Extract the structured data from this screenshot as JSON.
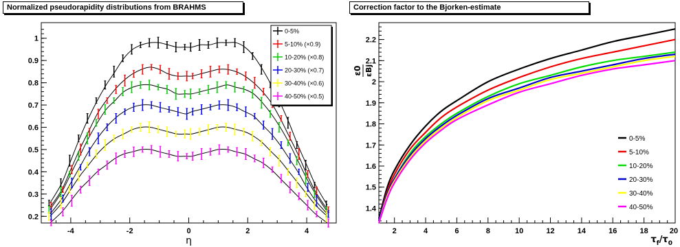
{
  "chart_data": [
    {
      "type": "scatter",
      "title": "Normalized pseudorapidity distributions from BRAHMS",
      "xlabel": "η",
      "ylabel": "",
      "xlim": [
        -5,
        5
      ],
      "ylim": [
        0.17,
        1.07
      ],
      "xticks": [
        -4,
        -2,
        0,
        2,
        4
      ],
      "xtick_labels": [
        "-4",
        "-2",
        "0",
        "2",
        "4"
      ],
      "yticks": [
        0.2,
        0.3,
        0.4,
        0.5,
        0.6,
        0.7,
        0.8,
        0.9,
        1.0
      ],
      "ytick_labels": [
        "0.2",
        "0.3",
        "0.4",
        "0.5",
        "0.6",
        "0.7",
        "0.8",
        "0.9",
        "1"
      ],
      "legend_position": "top-right",
      "fit_curves": "black solid lines through each series",
      "x": [
        -4.7,
        -4.3,
        -4.0,
        -3.7,
        -3.4,
        -3.1,
        -2.8,
        -2.5,
        -2.2,
        -1.9,
        -1.6,
        -1.3,
        -1.0,
        -0.7,
        -0.4,
        -0.1,
        0.1,
        0.4,
        0.7,
        1.0,
        1.3,
        1.6,
        1.9,
        2.2,
        2.5,
        2.8,
        3.1,
        3.4,
        3.7,
        4.0,
        4.3,
        4.7
      ],
      "series": [
        {
          "name": "0-5%",
          "color": "#000000",
          "values": [
            0.26,
            0.35,
            0.45,
            0.55,
            0.64,
            0.72,
            0.79,
            0.85,
            0.91,
            0.95,
            0.97,
            0.98,
            0.98,
            0.97,
            0.96,
            0.96,
            0.96,
            0.97,
            0.97,
            0.98,
            0.98,
            0.98,
            0.96,
            0.92,
            0.86,
            0.79,
            0.71,
            0.62,
            0.52,
            0.43,
            0.34,
            0.25
          ]
        },
        {
          "name": "5-10% (×0.9)",
          "color": "#ff0000",
          "values": [
            0.24,
            0.32,
            0.41,
            0.5,
            0.58,
            0.66,
            0.72,
            0.77,
            0.81,
            0.84,
            0.86,
            0.87,
            0.86,
            0.84,
            0.83,
            0.83,
            0.83,
            0.84,
            0.85,
            0.86,
            0.86,
            0.85,
            0.83,
            0.8,
            0.76,
            0.71,
            0.64,
            0.56,
            0.48,
            0.39,
            0.31,
            0.23
          ]
        },
        {
          "name": "10-20% (×0.8)",
          "color": "#00cc00",
          "values": [
            0.23,
            0.31,
            0.39,
            0.47,
            0.55,
            0.62,
            0.68,
            0.72,
            0.76,
            0.78,
            0.79,
            0.79,
            0.78,
            0.77,
            0.75,
            0.75,
            0.75,
            0.76,
            0.77,
            0.78,
            0.79,
            0.78,
            0.77,
            0.75,
            0.71,
            0.66,
            0.6,
            0.53,
            0.45,
            0.37,
            0.3,
            0.22
          ]
        },
        {
          "name": "20-30% (×0.7)",
          "color": "#0000ff",
          "values": [
            0.21,
            0.28,
            0.35,
            0.42,
            0.49,
            0.55,
            0.6,
            0.64,
            0.67,
            0.69,
            0.7,
            0.7,
            0.69,
            0.68,
            0.67,
            0.66,
            0.67,
            0.68,
            0.69,
            0.7,
            0.7,
            0.69,
            0.67,
            0.65,
            0.61,
            0.57,
            0.52,
            0.46,
            0.4,
            0.33,
            0.27,
            0.21
          ]
        },
        {
          "name": "30-40% (×0.6)",
          "color": "#ffff00",
          "values": [
            0.2,
            0.26,
            0.32,
            0.38,
            0.43,
            0.48,
            0.52,
            0.55,
            0.57,
            0.59,
            0.6,
            0.6,
            0.59,
            0.58,
            0.57,
            0.57,
            0.57,
            0.58,
            0.59,
            0.6,
            0.6,
            0.59,
            0.58,
            0.56,
            0.53,
            0.49,
            0.45,
            0.4,
            0.35,
            0.3,
            0.25,
            0.2
          ]
        },
        {
          "name": "40-50% (×0.5)",
          "color": "#ff00ff",
          "values": [
            0.17,
            0.22,
            0.27,
            0.32,
            0.36,
            0.4,
            0.43,
            0.46,
            0.48,
            0.49,
            0.5,
            0.5,
            0.49,
            0.48,
            0.47,
            0.47,
            0.47,
            0.48,
            0.49,
            0.5,
            0.5,
            0.49,
            0.48,
            0.46,
            0.44,
            0.41,
            0.37,
            0.33,
            0.29,
            0.25,
            0.21,
            0.17
          ]
        }
      ]
    },
    {
      "type": "line",
      "title": "Correction factor to the Bjorken-estimate",
      "xlabel": "τf/τ0",
      "ylabel": "ε0/εBj",
      "xlim": [
        1,
        20
      ],
      "ylim": [
        1.33,
        2.28
      ],
      "xticks": [
        2,
        4,
        6,
        8,
        10,
        12,
        14,
        16,
        18,
        20
      ],
      "xtick_labels": [
        "2",
        "4",
        "6",
        "8",
        "10",
        "12",
        "14",
        "16",
        "18",
        "20"
      ],
      "yticks": [
        1.4,
        1.5,
        1.6,
        1.7,
        1.8,
        1.9,
        2.0,
        2.1,
        2.2
      ],
      "ytick_labels": [
        "1.4",
        "1.5",
        "1.6",
        "1.7",
        "1.8",
        "1.9",
        "2",
        "2.1",
        "2.2"
      ],
      "legend_position": "bottom-right",
      "x": [
        1,
        1.5,
        2,
        3,
        4,
        5,
        6,
        8,
        10,
        12,
        14,
        16,
        18,
        20
      ],
      "series": [
        {
          "name": "0-5%",
          "color": "#000000",
          "values": [
            1.35,
            1.49,
            1.58,
            1.7,
            1.79,
            1.86,
            1.91,
            2.0,
            2.06,
            2.11,
            2.15,
            2.19,
            2.22,
            2.25
          ]
        },
        {
          "name": "5-10%",
          "color": "#ee0000",
          "values": [
            1.34,
            1.47,
            1.56,
            1.68,
            1.76,
            1.83,
            1.88,
            1.96,
            2.02,
            2.07,
            2.11,
            2.14,
            2.17,
            2.2
          ]
        },
        {
          "name": "10-20%",
          "color": "#00dd00",
          "values": [
            1.34,
            1.46,
            1.54,
            1.66,
            1.74,
            1.8,
            1.85,
            1.93,
            1.99,
            2.03,
            2.07,
            2.1,
            2.12,
            2.14
          ]
        },
        {
          "name": "20-30%",
          "color": "#0000cc",
          "values": [
            1.34,
            1.46,
            1.54,
            1.65,
            1.73,
            1.79,
            1.84,
            1.92,
            1.97,
            2.02,
            2.05,
            2.08,
            2.11,
            2.13
          ]
        },
        {
          "name": "30-40%",
          "color": "#ffff00",
          "values": [
            1.33,
            1.45,
            1.53,
            1.64,
            1.72,
            1.78,
            1.83,
            1.91,
            1.96,
            2.01,
            2.04,
            2.07,
            2.1,
            2.12
          ]
        },
        {
          "name": "40-50%",
          "color": "#ff00ff",
          "values": [
            1.33,
            1.44,
            1.52,
            1.63,
            1.71,
            1.77,
            1.82,
            1.89,
            1.95,
            1.99,
            2.03,
            2.06,
            2.08,
            2.1
          ]
        }
      ]
    }
  ]
}
